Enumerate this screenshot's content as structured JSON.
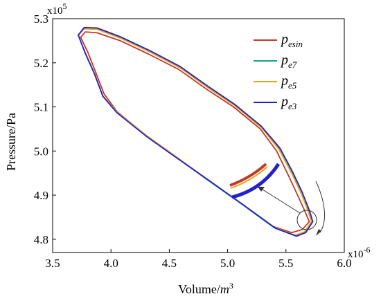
{
  "chart_data": {
    "type": "line",
    "title": "",
    "xlabel": "Volume/",
    "xlabel_unit_base": "m",
    "xlabel_unit_exp": "3",
    "ylabel": "Pressure/Pa",
    "x_multiplier_base": "x10",
    "x_multiplier_exp": "-6",
    "y_multiplier_base": "x10",
    "y_multiplier_exp": "5",
    "xlim": [
      3.5,
      6.0
    ],
    "ylim": [
      4.77,
      5.3
    ],
    "xticks": [
      "3.5",
      "4.0",
      "4.5",
      "5.0",
      "5.5",
      "6.0"
    ],
    "yticks": [
      "4.8",
      "4.9",
      "5.0",
      "5.1",
      "5.2",
      "5.3"
    ],
    "grid": false,
    "legend_position": "top-right",
    "series": [
      {
        "name": "p",
        "subscript": "esin",
        "color": "#c0392b",
        "points": [
          [
            5.7,
            4.84
          ],
          [
            5.64,
            4.822
          ],
          [
            5.55,
            4.815
          ],
          [
            5.38,
            4.83
          ],
          [
            5.12,
            4.88
          ],
          [
            4.8,
            4.94
          ],
          [
            4.55,
            4.988
          ],
          [
            4.3,
            5.035
          ],
          [
            4.05,
            5.09
          ],
          [
            3.94,
            5.13
          ],
          [
            3.87,
            5.178
          ],
          [
            3.8,
            5.225
          ],
          [
            3.74,
            5.258
          ],
          [
            3.78,
            5.27
          ],
          [
            3.88,
            5.268
          ],
          [
            4.08,
            5.25
          ],
          [
            4.32,
            5.22
          ],
          [
            4.58,
            5.185
          ],
          [
            4.82,
            5.14
          ],
          [
            5.05,
            5.1
          ],
          [
            5.28,
            5.05
          ],
          [
            5.42,
            5.0
          ],
          [
            5.52,
            4.945
          ],
          [
            5.6,
            4.9
          ],
          [
            5.66,
            4.865
          ],
          [
            5.7,
            4.84
          ]
        ]
      },
      {
        "name": "p",
        "subscript": "e7",
        "color": "#1aa083",
        "points": [
          [
            5.72,
            4.84
          ],
          [
            5.66,
            4.816
          ],
          [
            5.58,
            4.808
          ],
          [
            5.4,
            4.826
          ],
          [
            5.13,
            4.878
          ],
          [
            4.81,
            4.938
          ],
          [
            4.56,
            4.986
          ],
          [
            4.31,
            5.033
          ],
          [
            4.05,
            5.088
          ],
          [
            3.93,
            5.125
          ],
          [
            3.86,
            5.175
          ],
          [
            3.78,
            5.222
          ],
          [
            3.72,
            5.262
          ],
          [
            3.77,
            5.278
          ],
          [
            3.88,
            5.277
          ],
          [
            4.08,
            5.257
          ],
          [
            4.33,
            5.226
          ],
          [
            4.59,
            5.19
          ],
          [
            4.83,
            5.145
          ],
          [
            5.06,
            5.104
          ],
          [
            5.29,
            5.054
          ],
          [
            5.44,
            5.005
          ],
          [
            5.55,
            4.95
          ],
          [
            5.63,
            4.905
          ],
          [
            5.69,
            4.865
          ],
          [
            5.72,
            4.84
          ]
        ]
      },
      {
        "name": "p",
        "subscript": "e5",
        "color": "#e8a317",
        "points": [
          [
            5.72,
            4.84
          ],
          [
            5.66,
            4.817
          ],
          [
            5.58,
            4.809
          ],
          [
            5.4,
            4.827
          ],
          [
            5.13,
            4.879
          ],
          [
            4.81,
            4.939
          ],
          [
            4.56,
            4.987
          ],
          [
            4.31,
            5.034
          ],
          [
            4.05,
            5.089
          ],
          [
            3.93,
            5.126
          ],
          [
            3.86,
            5.176
          ],
          [
            3.78,
            5.223
          ],
          [
            3.72,
            5.262
          ],
          [
            3.77,
            5.277
          ],
          [
            3.88,
            5.276
          ],
          [
            4.08,
            5.256
          ],
          [
            4.33,
            5.225
          ],
          [
            4.59,
            5.189
          ],
          [
            4.83,
            5.144
          ],
          [
            5.06,
            5.103
          ],
          [
            5.29,
            5.053
          ],
          [
            5.44,
            5.004
          ],
          [
            5.55,
            4.949
          ],
          [
            5.63,
            4.904
          ],
          [
            5.69,
            4.864
          ],
          [
            5.72,
            4.84
          ]
        ]
      },
      {
        "name": "p",
        "subscript": "e3",
        "color": "#2222cc",
        "points": [
          [
            5.73,
            4.84
          ],
          [
            5.67,
            4.815
          ],
          [
            5.59,
            4.807
          ],
          [
            5.41,
            4.825
          ],
          [
            5.14,
            4.877
          ],
          [
            4.82,
            4.937
          ],
          [
            4.56,
            4.985
          ],
          [
            4.31,
            5.032
          ],
          [
            4.05,
            5.087
          ],
          [
            3.93,
            5.124
          ],
          [
            3.86,
            5.174
          ],
          [
            3.78,
            5.221
          ],
          [
            3.72,
            5.263
          ],
          [
            3.77,
            5.28
          ],
          [
            3.88,
            5.279
          ],
          [
            4.08,
            5.259
          ],
          [
            4.33,
            5.228
          ],
          [
            4.59,
            5.192
          ],
          [
            4.83,
            5.147
          ],
          [
            5.06,
            5.106
          ],
          [
            5.29,
            5.056
          ],
          [
            5.45,
            5.006
          ],
          [
            5.56,
            4.951
          ],
          [
            5.64,
            4.906
          ],
          [
            5.7,
            4.866
          ],
          [
            5.73,
            4.84
          ]
        ]
      }
    ]
  }
}
